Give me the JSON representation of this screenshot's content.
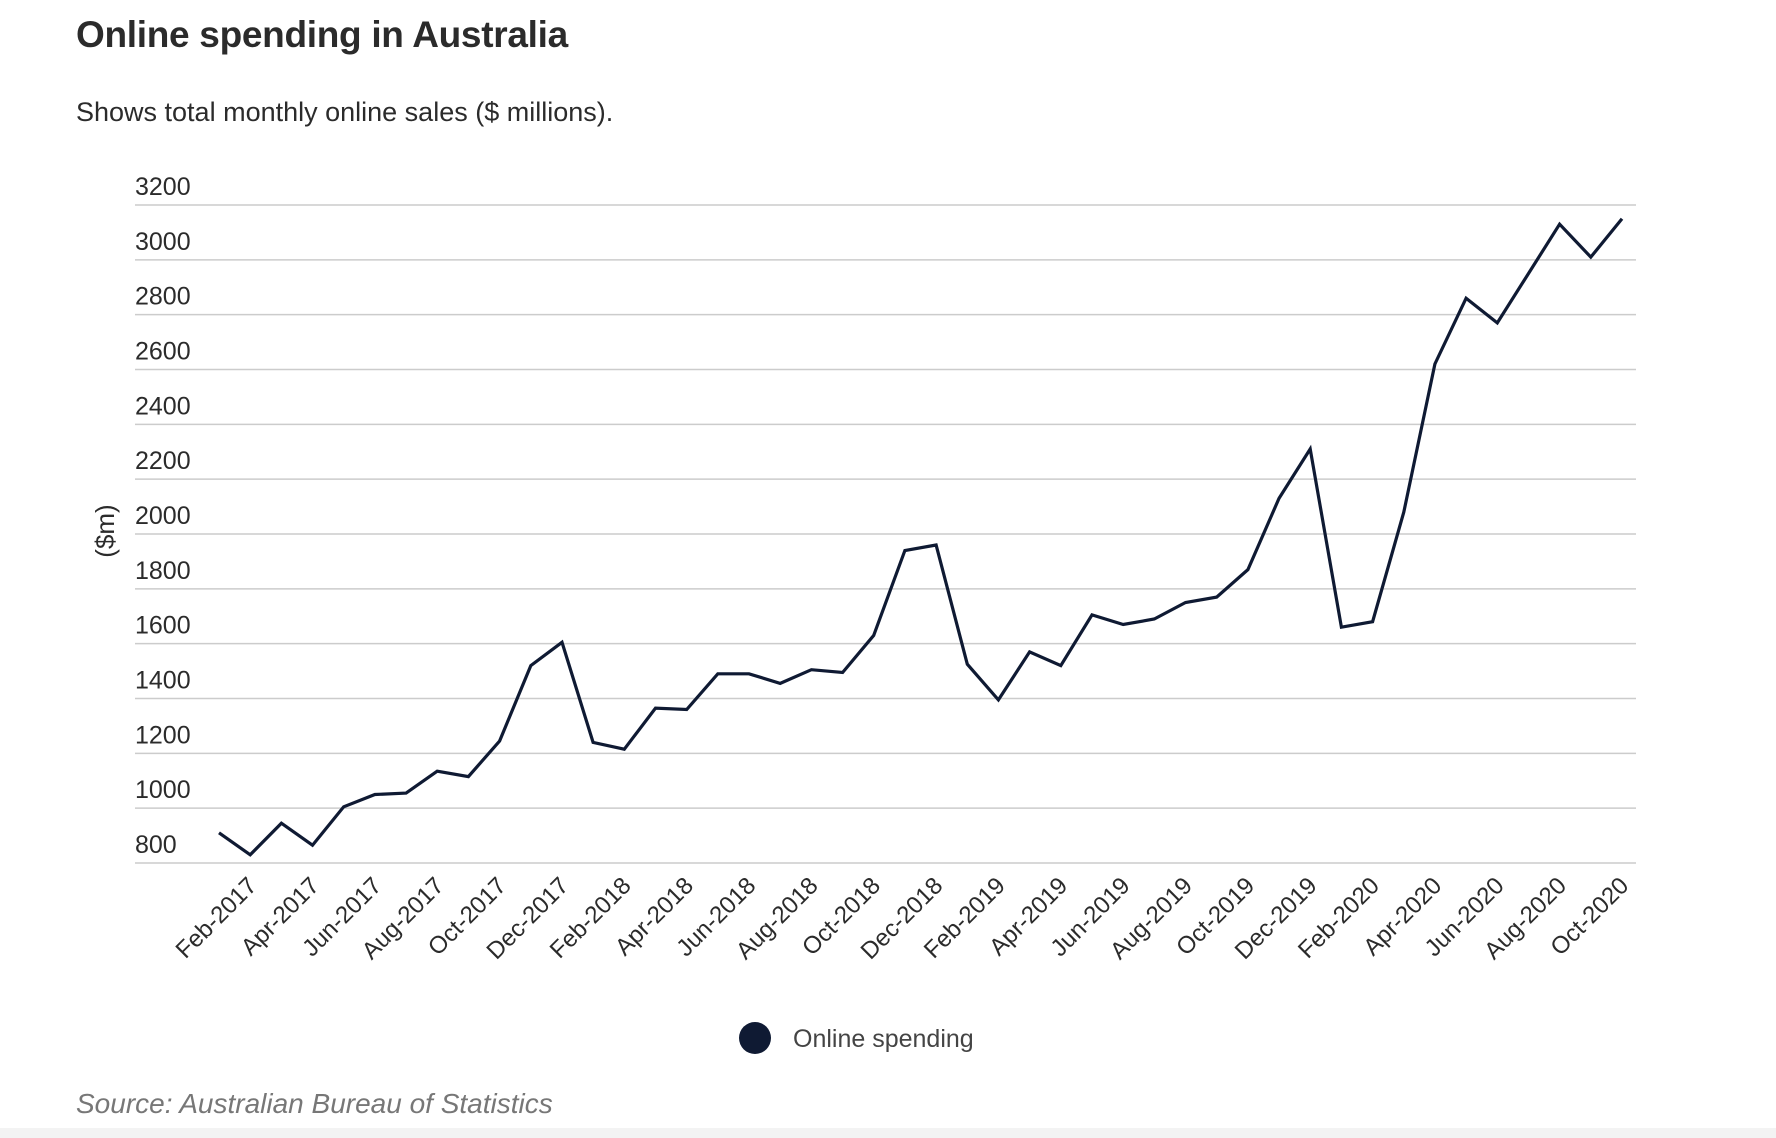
{
  "header": {
    "title": "Online spending in Australia",
    "subtitle": "Shows total monthly online sales ($ millions)."
  },
  "footer": {
    "source": "Source: Australian Bureau of Statistics"
  },
  "colors": {
    "line": "#0f1a33",
    "grid": "#cccccc",
    "text": "#2b2b2b",
    "source": "#777777"
  },
  "chart_data": {
    "type": "line",
    "title": "Online spending in Australia",
    "subtitle": "Shows total monthly online sales ($ millions).",
    "ylabel": "($m)",
    "xlabel": "",
    "ylim": [
      800,
      3200
    ],
    "yticks": [
      800,
      1000,
      1200,
      1400,
      1600,
      1800,
      2000,
      2200,
      2400,
      2600,
      2800,
      3000,
      3200
    ],
    "grid": true,
    "legend_position": "bottom-center",
    "x": [
      "Jan-2017",
      "Feb-2017",
      "Mar-2017",
      "Apr-2017",
      "May-2017",
      "Jun-2017",
      "Jul-2017",
      "Aug-2017",
      "Sep-2017",
      "Oct-2017",
      "Nov-2017",
      "Dec-2017",
      "Jan-2018",
      "Feb-2018",
      "Mar-2018",
      "Apr-2018",
      "May-2018",
      "Jun-2018",
      "Jul-2018",
      "Aug-2018",
      "Sep-2018",
      "Oct-2018",
      "Nov-2018",
      "Dec-2018",
      "Jan-2019",
      "Feb-2019",
      "Mar-2019",
      "Apr-2019",
      "May-2019",
      "Jun-2019",
      "Jul-2019",
      "Aug-2019",
      "Sep-2019",
      "Oct-2019",
      "Nov-2019",
      "Dec-2019",
      "Jan-2020",
      "Feb-2020",
      "Mar-2020",
      "Apr-2020",
      "May-2020",
      "Jun-2020",
      "Jul-2020",
      "Aug-2020",
      "Sep-2020",
      "Oct-2020"
    ],
    "x_tick_labels": [
      "Feb-2017",
      "Apr-2017",
      "Jun-2017",
      "Aug-2017",
      "Oct-2017",
      "Dec-2017",
      "Feb-2018",
      "Apr-2018",
      "Jun-2018",
      "Aug-2018",
      "Oct-2018",
      "Dec-2018",
      "Feb-2019",
      "Apr-2019",
      "Jun-2019",
      "Aug-2019",
      "Oct-2019",
      "Dec-2019",
      "Feb-2020",
      "Apr-2020",
      "Jun-2020",
      "Aug-2020",
      "Oct-2020"
    ],
    "series": [
      {
        "name": "Online spending",
        "color": "#0f1a33",
        "values": [
          910,
          830,
          945,
          865,
          1005,
          1050,
          1055,
          1135,
          1115,
          1245,
          1520,
          1605,
          1240,
          1215,
          1365,
          1360,
          1490,
          1490,
          1455,
          1505,
          1495,
          1630,
          1940,
          1960,
          1525,
          1395,
          1570,
          1520,
          1705,
          1670,
          1690,
          1750,
          1770,
          1870,
          2130,
          2310,
          1660,
          1680,
          2080,
          2620,
          2860,
          2770,
          2950,
          3130,
          3010,
          3150
        ]
      }
    ]
  }
}
